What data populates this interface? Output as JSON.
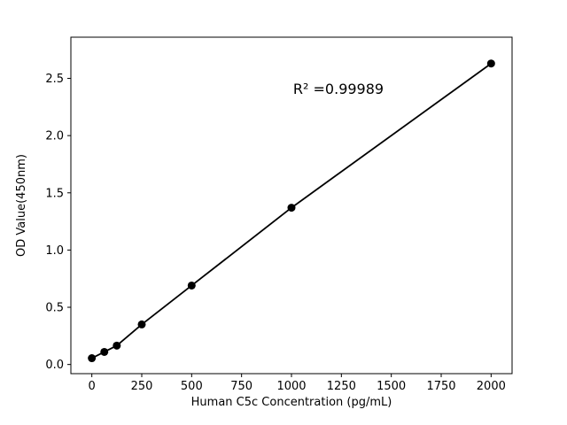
{
  "chart_data": {
    "type": "scatter",
    "title": "",
    "xlabel": "Human C5c Concentration (pg/mL)",
    "ylabel": "OD Value(450nm)",
    "annotation": "R² =0.99989",
    "x": [
      0,
      62.5,
      125,
      250,
      500,
      1000,
      2000
    ],
    "y": [
      0.055,
      0.11,
      0.165,
      0.35,
      0.69,
      1.37,
      2.63
    ],
    "has_fit_line": true,
    "xlim": [
      -105,
      2105
    ],
    "ylim": [
      -0.08,
      2.86
    ],
    "xticks": [
      0,
      250,
      500,
      750,
      1000,
      1250,
      1500,
      1750,
      2000
    ],
    "yticks": [
      0.0,
      0.5,
      1.0,
      1.5,
      2.0,
      2.5
    ],
    "grid": false,
    "legend": null,
    "marker_color": "#000000",
    "line_color": "#000000",
    "background_color": "#ffffff"
  }
}
